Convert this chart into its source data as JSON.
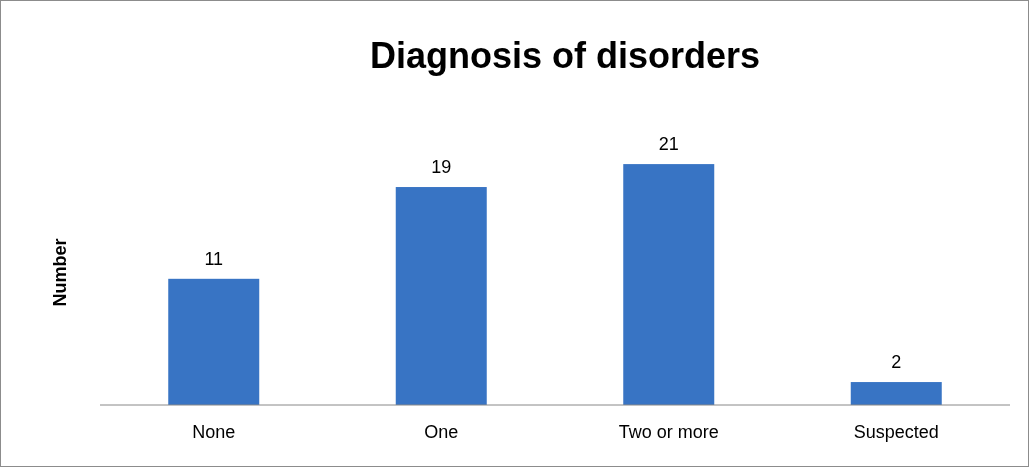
{
  "chart_data": {
    "type": "bar",
    "title": "Diagnosis of disorders",
    "ylabel": "Number",
    "categories": [
      "None",
      "One",
      "Two or more",
      "Suspected"
    ],
    "values": [
      11,
      19,
      21,
      2
    ],
    "color": "#3874c4",
    "data_labels": true
  }
}
